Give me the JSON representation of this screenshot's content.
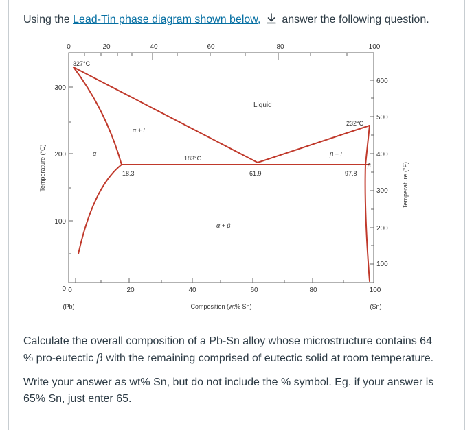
{
  "question": {
    "intro_before": "Using the ",
    "link_text": "Lead-Tin phase diagram shown below,",
    "intro_after": "answer the following question.",
    "para1_before": "Calculate the overall composition of a Pb-Sn alloy whose microstructure contains 64 % pro-eutectic ",
    "para1_symbol": "β",
    "para1_after": " with the remaining comprised of eutectic solid at room temperature.",
    "para2": "Write your answer as wt% Sn, but do not include the % symbol. Eg. if your answer is 65% Sn, just enter 65."
  },
  "diagram": {
    "top_axis_ticks": [
      "0",
      "20",
      "40",
      "60",
      "80",
      "100"
    ],
    "bottom_axis_ticks": [
      "0",
      "20",
      "40",
      "60",
      "80",
      "100"
    ],
    "x_label": "Composition (wt% Sn)",
    "x_left_endpoint": "(Pb)",
    "x_right_endpoint": "(Sn)",
    "left_axis_ticks": [
      "0",
      "100",
      "200",
      "300"
    ],
    "left_axis_label": "Temperature (°C)",
    "right_axis_ticks": [
      "100",
      "200",
      "300",
      "400",
      "500",
      "600"
    ],
    "right_axis_label": "Temperature (°F)",
    "pb_melting": "327°C",
    "sn_melting": "232°C",
    "eutectic_temp": "183°C",
    "alpha_max": "18.3",
    "eutectic_comp": "61.9",
    "beta_max": "97.8",
    "region_liquid": "Liquid",
    "region_alpha_liquid": "α + L",
    "region_beta_liquid": "β + L",
    "region_alpha_beta": "α + β",
    "region_alpha": "α",
    "region_beta": "β"
  },
  "colors": {
    "phase_line": "#c0392b",
    "link": "#0770a3",
    "text": "#2d3b45"
  }
}
